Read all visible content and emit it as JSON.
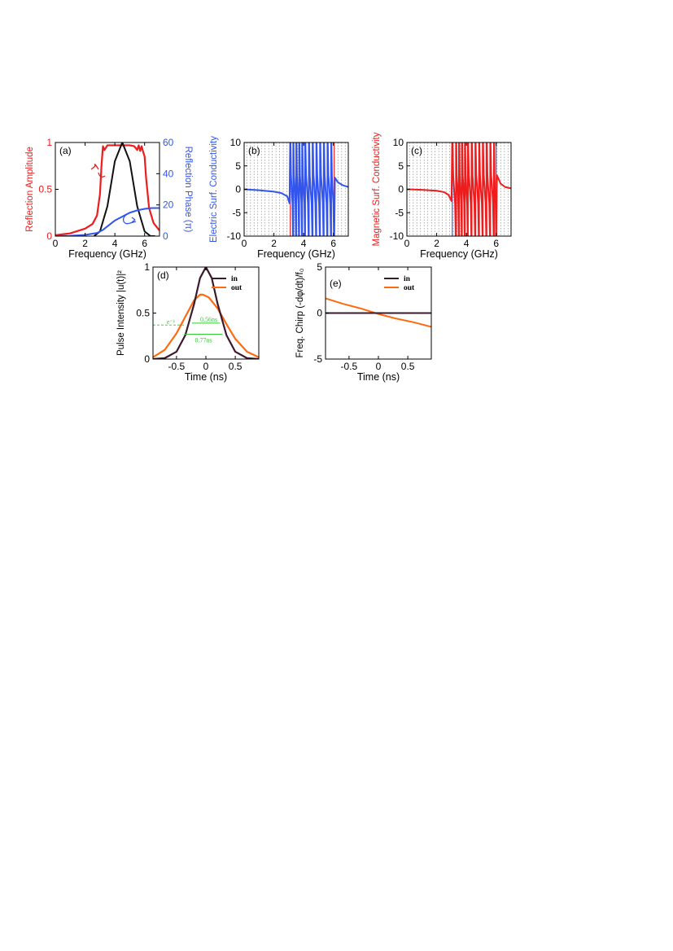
{
  "colors": {
    "red": "#ee1c1c",
    "blue": "#3355ee",
    "black": "#111111",
    "dark_purple": "#3b1a2e",
    "orange": "#ff6a10",
    "green": "#33cc33",
    "dotted_gray": "#8a8a8a"
  },
  "chart_data": [
    {
      "panel": "(a)",
      "type": "line",
      "xlabel": "Frequency (GHz)",
      "ylabel_left": "Reflection Amplitude",
      "ylabel_right": "Reflection Phase (π)",
      "xlim": [
        0,
        7
      ],
      "ylim_left": [
        0,
        1
      ],
      "ylim_right": [
        0,
        60
      ],
      "xticks": [
        "0",
        "2",
        "4",
        "6"
      ],
      "yticks_left": [
        "0",
        "0.5",
        "1"
      ],
      "yticks_right": [
        "0",
        "20",
        "40",
        "60"
      ],
      "series": [
        {
          "axis": "left",
          "color": "red",
          "style": "solid",
          "x": [
            0,
            1,
            2,
            2.5,
            2.8,
            3.0,
            3.1,
            3.2,
            3.3,
            3.5,
            4.0,
            4.5,
            5.0,
            5.3,
            5.5,
            5.6,
            5.7,
            5.8,
            5.9,
            6.0,
            6.1,
            6.3,
            6.6,
            7.0
          ],
          "y": [
            0.01,
            0.03,
            0.08,
            0.13,
            0.22,
            0.45,
            0.75,
            0.96,
            0.92,
            0.97,
            0.97,
            0.97,
            0.97,
            0.96,
            0.92,
            0.97,
            0.91,
            0.96,
            0.9,
            0.85,
            0.62,
            0.3,
            0.14,
            0.06
          ]
        },
        {
          "axis": "left",
          "color": "black",
          "style": "solid",
          "x": [
            2.6,
            3.0,
            3.5,
            4.0,
            4.5,
            5.0,
            5.5,
            6.0,
            6.4,
            6.7
          ],
          "y": [
            0.0,
            0.05,
            0.32,
            0.8,
            1.0,
            0.8,
            0.32,
            0.05,
            0.0,
            0.0
          ]
        },
        {
          "axis": "right",
          "color": "blue",
          "style": "solid",
          "x": [
            0,
            1,
            2,
            2.8,
            3.2,
            3.6,
            4.0,
            4.5,
            5.0,
            5.5,
            6.0,
            6.5,
            7.0
          ],
          "y": [
            0,
            0.2,
            0.8,
            2,
            4,
            7,
            10,
            12.5,
            15,
            16.5,
            17.5,
            18,
            18
          ]
        }
      ],
      "annotations": [
        "(a)"
      ]
    },
    {
      "panel": "(b)",
      "type": "line",
      "xlabel": "Frequency (GHz)",
      "ylabel": "Electric Surf. Conductivity",
      "xlim": [
        0,
        7
      ],
      "ylim": [
        -10,
        10
      ],
      "xticks": [
        "0",
        "2",
        "4",
        "6"
      ],
      "yticks": [
        "-10",
        "-5",
        "0",
        "5",
        "10"
      ],
      "curve_color": "blue",
      "resonance_color": "red",
      "resonances": [
        3.1,
        3.3,
        3.5,
        3.7,
        3.9,
        4.1,
        4.35,
        4.6,
        4.85,
        5.1,
        5.35,
        5.6,
        5.85,
        6.05
      ],
      "baseline": {
        "x": [
          0,
          1,
          2,
          2.5,
          2.9,
          3.05
        ],
        "y": [
          0,
          -0.2,
          -0.5,
          -0.8,
          -1.5,
          -3.0
        ]
      },
      "tail": {
        "x": [
          6.1,
          6.3,
          6.6,
          7.0
        ],
        "y": [
          2.5,
          1.5,
          0.9,
          0.5
        ]
      },
      "annotations": [
        "(b)"
      ]
    },
    {
      "panel": "(c)",
      "type": "line",
      "xlabel": "Frequency (GHz)",
      "ylabel": "Magnetic Surf. Conductivity",
      "xlim": [
        0,
        7
      ],
      "ylim": [
        -10,
        10
      ],
      "xticks": [
        "0",
        "2",
        "4",
        "6"
      ],
      "yticks": [
        "-10",
        "-5",
        "0",
        "5",
        "10"
      ],
      "curve_color": "red",
      "resonance_color": "blue",
      "resonances": [
        3.05,
        3.3,
        3.5,
        3.7,
        3.9,
        4.1,
        4.35,
        4.6,
        4.85,
        5.1,
        5.35,
        5.6,
        5.85,
        6.0
      ],
      "baseline": {
        "x": [
          0,
          1,
          2,
          2.5,
          2.8,
          3.0
        ],
        "y": [
          0,
          -0.1,
          -0.3,
          -0.6,
          -1.2,
          -2.5
        ]
      },
      "tail": {
        "x": [
          6.05,
          6.3,
          6.6,
          7.0
        ],
        "y": [
          3.0,
          1.2,
          0.5,
          0.2
        ]
      },
      "annotations": [
        "(c)"
      ]
    },
    {
      "panel": "(d)",
      "type": "line",
      "xlabel": "Time (ns)",
      "ylabel": "Pulse Intensity |u(t)|²",
      "xlim": [
        -0.9,
        0.9
      ],
      "ylim": [
        0,
        1
      ],
      "xticks": [
        "-0.5",
        "0",
        "0.5"
      ],
      "yticks": [
        "0",
        "0.5",
        "1"
      ],
      "legend": {
        "position": "top-right",
        "entries": [
          "in",
          "out"
        ]
      },
      "series": [
        {
          "name": "in",
          "color": "dark_purple",
          "x": [
            -0.9,
            -0.7,
            -0.5,
            -0.35,
            -0.2,
            -0.1,
            0,
            0.1,
            0.2,
            0.35,
            0.5,
            0.7,
            0.9
          ],
          "y": [
            0.0,
            0.01,
            0.08,
            0.26,
            0.6,
            0.88,
            1.0,
            0.88,
            0.6,
            0.26,
            0.08,
            0.01,
            0.0
          ]
        },
        {
          "name": "out",
          "color": "orange",
          "x": [
            -0.9,
            -0.7,
            -0.5,
            -0.35,
            -0.2,
            -0.1,
            -0.05,
            0.05,
            0.2,
            0.35,
            0.5,
            0.7,
            0.9
          ],
          "y": [
            0.02,
            0.1,
            0.28,
            0.46,
            0.64,
            0.7,
            0.7,
            0.67,
            0.55,
            0.38,
            0.22,
            0.08,
            0.02
          ]
        }
      ],
      "annotations": {
        "e_label": "e⁻¹",
        "width_in": "0.56ns",
        "width_out": "0.77ns"
      }
    },
    {
      "panel": "(e)",
      "type": "line",
      "xlabel": "Time (ns)",
      "ylabel": "Freq. Chirp (-dφ/dt)/f₀",
      "xlim": [
        -0.9,
        0.9
      ],
      "ylim": [
        -5,
        5
      ],
      "xticks": [
        "-0.5",
        "0",
        "0.5"
      ],
      "yticks": [
        "-5",
        "0",
        "5"
      ],
      "legend": {
        "position": "top-right",
        "entries": [
          "in",
          "out"
        ]
      },
      "series": [
        {
          "name": "in",
          "color": "dark_purple",
          "x": [
            -0.9,
            0.9
          ],
          "y": [
            0,
            0
          ]
        },
        {
          "name": "out",
          "color": "orange",
          "x": [
            -0.9,
            -0.6,
            -0.3,
            0,
            0.3,
            0.6,
            0.9
          ],
          "y": [
            1.6,
            1.0,
            0.5,
            -0.1,
            -0.6,
            -1.0,
            -1.5
          ]
        }
      ],
      "annotations": [
        "(e)"
      ]
    }
  ]
}
